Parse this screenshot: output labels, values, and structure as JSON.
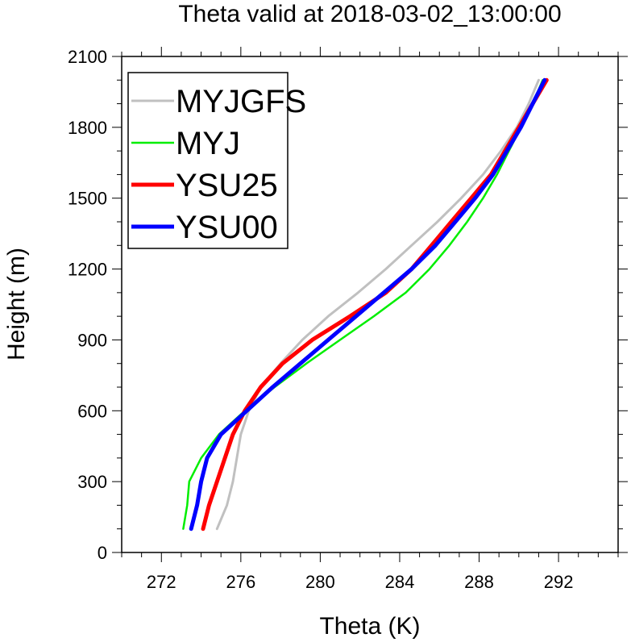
{
  "chart_data": {
    "type": "line",
    "title": "Theta valid at 2018-03-02_13:00:00",
    "xlabel": "Theta (K)",
    "ylabel": "Height (m)",
    "xlim": [
      270,
      295
    ],
    "ylim": [
      0,
      2100
    ],
    "xticks": [
      272,
      276,
      280,
      284,
      288,
      292
    ],
    "yticks": [
      0,
      300,
      600,
      900,
      1200,
      1500,
      1800,
      2100
    ],
    "grid": false,
    "legend_position": "top-left",
    "series": [
      {
        "name": "MYJGFS",
        "color": "#c0c0c0",
        "points": [
          [
            274.8,
            100
          ],
          [
            275.3,
            200
          ],
          [
            275.6,
            300
          ],
          [
            275.8,
            400
          ],
          [
            276.0,
            500
          ],
          [
            276.4,
            600
          ],
          [
            277.0,
            700
          ],
          [
            278.0,
            800
          ],
          [
            279.1,
            900
          ],
          [
            280.4,
            1000
          ],
          [
            281.9,
            1100
          ],
          [
            283.3,
            1200
          ],
          [
            284.6,
            1300
          ],
          [
            285.9,
            1400
          ],
          [
            287.1,
            1500
          ],
          [
            288.2,
            1600
          ],
          [
            289.1,
            1700
          ],
          [
            289.9,
            1800
          ],
          [
            290.5,
            1900
          ],
          [
            291.0,
            2000
          ]
        ]
      },
      {
        "name": "MYJ",
        "color": "#00ee00",
        "points": [
          [
            273.1,
            100
          ],
          [
            273.3,
            200
          ],
          [
            273.4,
            300
          ],
          [
            274.0,
            400
          ],
          [
            274.9,
            500
          ],
          [
            276.2,
            600
          ],
          [
            277.7,
            700
          ],
          [
            279.3,
            800
          ],
          [
            281.0,
            900
          ],
          [
            282.7,
            1000
          ],
          [
            284.3,
            1100
          ],
          [
            285.5,
            1200
          ],
          [
            286.5,
            1300
          ],
          [
            287.4,
            1400
          ],
          [
            288.2,
            1500
          ],
          [
            288.9,
            1600
          ],
          [
            289.5,
            1700
          ],
          [
            290.1,
            1800
          ],
          [
            290.7,
            1900
          ],
          [
            291.2,
            2000
          ]
        ]
      },
      {
        "name": "YSU25",
        "color": "#ff0000",
        "points": [
          [
            274.1,
            100
          ],
          [
            274.4,
            200
          ],
          [
            274.8,
            300
          ],
          [
            275.2,
            400
          ],
          [
            275.6,
            500
          ],
          [
            276.2,
            600
          ],
          [
            277.0,
            700
          ],
          [
            278.1,
            800
          ],
          [
            279.6,
            900
          ],
          [
            281.5,
            1000
          ],
          [
            283.3,
            1100
          ],
          [
            284.6,
            1200
          ],
          [
            285.6,
            1300
          ],
          [
            286.6,
            1400
          ],
          [
            287.6,
            1500
          ],
          [
            288.6,
            1600
          ],
          [
            289.3,
            1700
          ],
          [
            290.0,
            1800
          ],
          [
            290.7,
            1900
          ],
          [
            291.4,
            2000
          ]
        ]
      },
      {
        "name": "YSU00",
        "color": "#0000ff",
        "points": [
          [
            273.5,
            100
          ],
          [
            273.8,
            200
          ],
          [
            274.0,
            300
          ],
          [
            274.3,
            400
          ],
          [
            275.0,
            500
          ],
          [
            276.3,
            600
          ],
          [
            277.6,
            700
          ],
          [
            279.0,
            800
          ],
          [
            280.4,
            900
          ],
          [
            281.8,
            1000
          ],
          [
            283.2,
            1100
          ],
          [
            284.6,
            1200
          ],
          [
            285.8,
            1300
          ],
          [
            286.8,
            1400
          ],
          [
            287.8,
            1500
          ],
          [
            288.7,
            1600
          ],
          [
            289.4,
            1700
          ],
          [
            290.1,
            1800
          ],
          [
            290.7,
            1900
          ],
          [
            291.3,
            2000
          ]
        ]
      }
    ]
  }
}
